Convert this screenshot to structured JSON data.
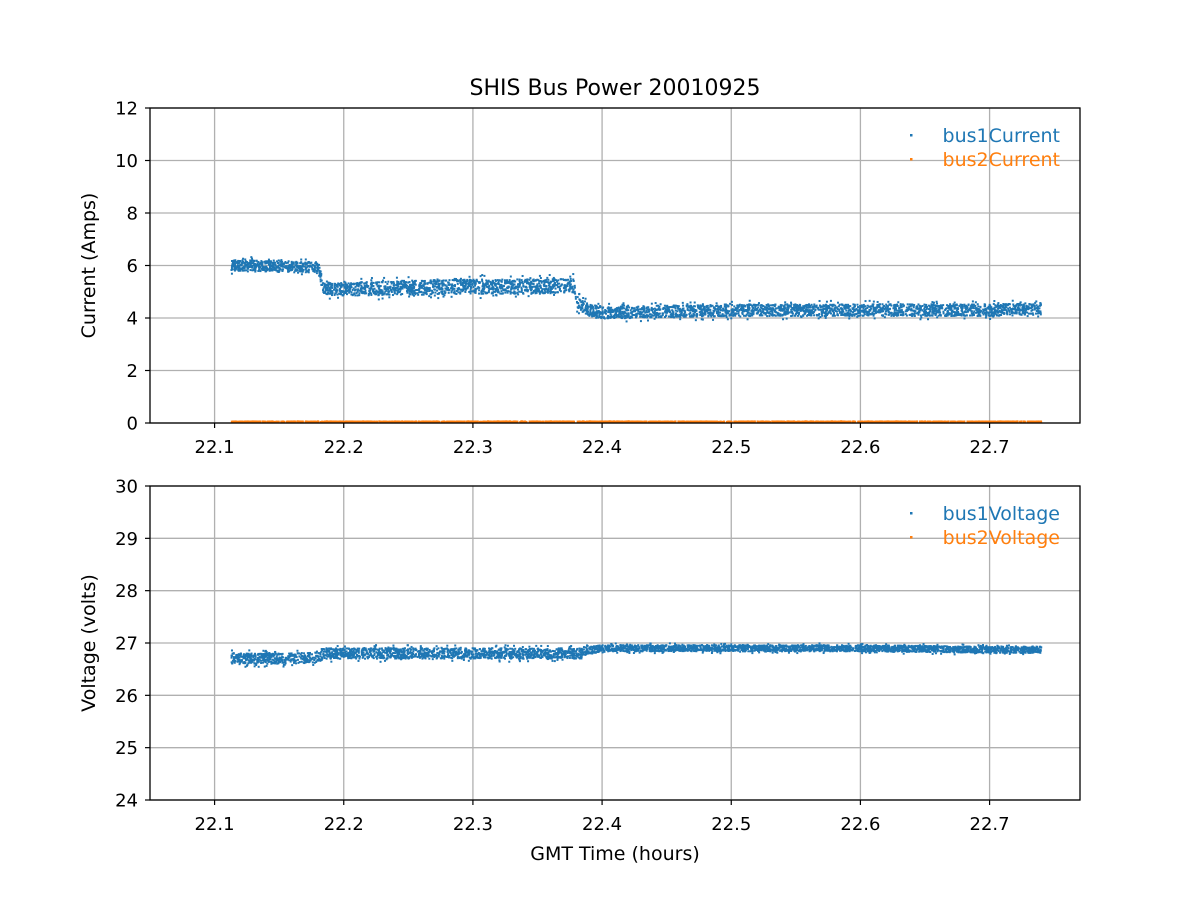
{
  "figure": {
    "title": "SHIS Bus Power 20010925",
    "xlabel": "GMT Time (hours)"
  },
  "colors": {
    "series1": "#1f77b4",
    "series2": "#ff7f0e",
    "grid": "#b0b0b0"
  },
  "chart_data": [
    {
      "type": "scatter",
      "title": "SHIS Bus Power 20010925",
      "xlabel": "",
      "ylabel": "Current (Amps)",
      "xlim": [
        22.05,
        22.77
      ],
      "ylim": [
        0,
        12
      ],
      "xticks": [
        22.1,
        22.2,
        22.3,
        22.4,
        22.5,
        22.6,
        22.7
      ],
      "xtick_labels": [
        "22.1",
        "22.2",
        "22.3",
        "22.4",
        "22.5",
        "22.6",
        "22.7"
      ],
      "yticks": [
        0,
        2,
        4,
        6,
        8,
        10,
        12
      ],
      "ytick_labels": [
        "0",
        "2",
        "4",
        "6",
        "8",
        "10",
        "12"
      ],
      "grid": true,
      "legend_position": "top-right",
      "series": [
        {
          "name": "bus1Current",
          "color": "#1f77b4",
          "x": [
            22.113,
            22.13,
            22.15,
            22.17,
            22.181,
            22.184,
            22.2,
            22.25,
            22.3,
            22.35,
            22.378,
            22.38,
            22.39,
            22.4,
            22.5,
            22.6,
            22.7,
            22.74
          ],
          "y": [
            6.0,
            6.0,
            5.95,
            5.95,
            5.9,
            5.1,
            5.1,
            5.15,
            5.2,
            5.2,
            5.25,
            4.6,
            4.3,
            4.2,
            4.3,
            4.3,
            4.3,
            4.35
          ],
          "spread": [
            0.4,
            0.4,
            0.4,
            0.4,
            0.4,
            0.45,
            0.5,
            0.55,
            0.55,
            0.55,
            0.55,
            0.5,
            0.45,
            0.45,
            0.45,
            0.45,
            0.45,
            0.45
          ]
        },
        {
          "name": "bus2Current",
          "color": "#ff7f0e",
          "x": [
            22.113,
            22.74
          ],
          "y": [
            0.05,
            0.05
          ],
          "spread": [
            0.02,
            0.02
          ]
        }
      ]
    },
    {
      "type": "scatter",
      "title": "",
      "xlabel": "GMT Time (hours)",
      "ylabel": "Voltage (volts)",
      "xlim": [
        22.05,
        22.77
      ],
      "ylim": [
        24,
        30
      ],
      "xticks": [
        22.1,
        22.2,
        22.3,
        22.4,
        22.5,
        22.6,
        22.7
      ],
      "xtick_labels": [
        "22.1",
        "22.2",
        "22.3",
        "22.4",
        "22.5",
        "22.6",
        "22.7"
      ],
      "yticks": [
        24,
        25,
        26,
        27,
        28,
        29,
        30
      ],
      "ytick_labels": [
        "24",
        "25",
        "26",
        "27",
        "28",
        "29",
        "30"
      ],
      "grid": true,
      "legend_position": "top-right",
      "series": [
        {
          "name": "bus1Voltage",
          "color": "#1f77b4",
          "x": [
            22.113,
            22.15,
            22.181,
            22.184,
            22.2,
            22.3,
            22.38,
            22.4,
            22.5,
            22.6,
            22.7,
            22.74
          ],
          "y": [
            26.7,
            26.7,
            26.72,
            26.8,
            26.8,
            26.8,
            26.8,
            26.9,
            26.9,
            26.9,
            26.87,
            26.87
          ],
          "spread": [
            0.2,
            0.2,
            0.2,
            0.2,
            0.2,
            0.2,
            0.2,
            0.12,
            0.12,
            0.12,
            0.12,
            0.12
          ]
        },
        {
          "name": "bus2Voltage",
          "color": "#ff7f0e",
          "x": [],
          "y": [],
          "spread": []
        }
      ]
    }
  ]
}
